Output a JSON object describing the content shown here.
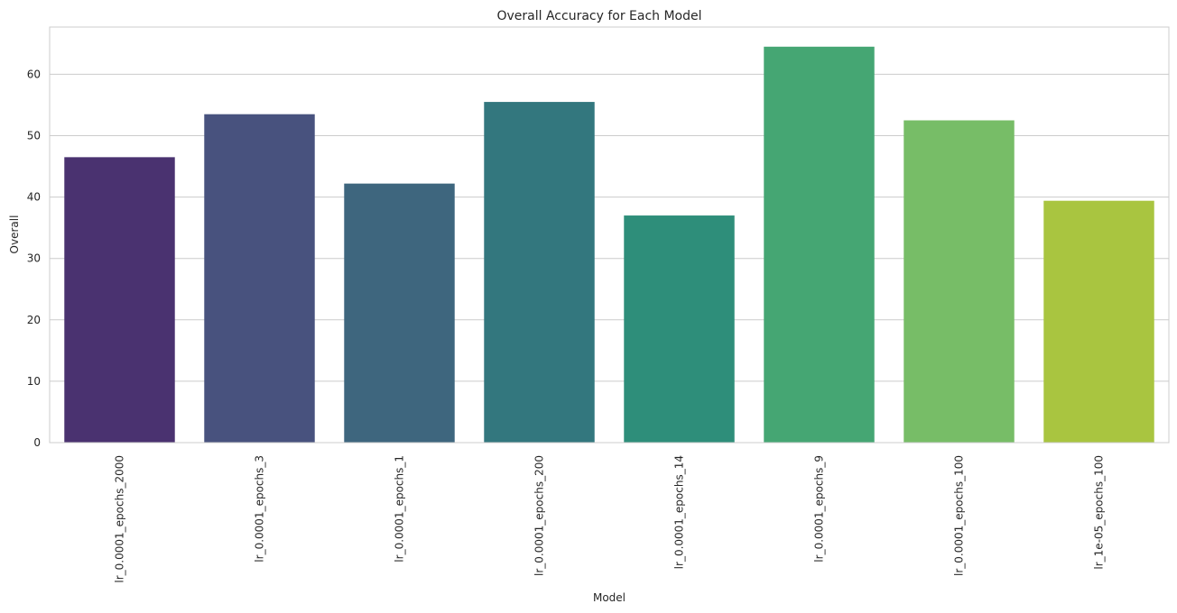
{
  "chart_data": {
    "type": "bar",
    "title": "Overall Accuracy for Each Model",
    "xlabel": "Model",
    "ylabel": "Overall",
    "categories": [
      "lr_0.0001_epochs_2000",
      "lr_0.0001_epochs_3",
      "lr_0.0001_epochs_1",
      "lr_0.0001_epochs_200",
      "lr_0.0001_epochs_14",
      "lr_0.0001_epochs_9",
      "lr_0.0001_epochs_100",
      "lr_1e-05_epochs_100"
    ],
    "values": [
      46.5,
      53.5,
      42.2,
      55.5,
      37.0,
      64.5,
      52.5,
      39.4
    ],
    "colors": [
      "#4a3270",
      "#48527e",
      "#3e667e",
      "#33777e",
      "#2e8e7a",
      "#45a673",
      "#77bd67",
      "#a9c540"
    ],
    "ylim": [
      0,
      67.7
    ],
    "yticks": [
      0,
      10,
      20,
      30,
      40,
      50,
      60
    ],
    "grid": true
  }
}
